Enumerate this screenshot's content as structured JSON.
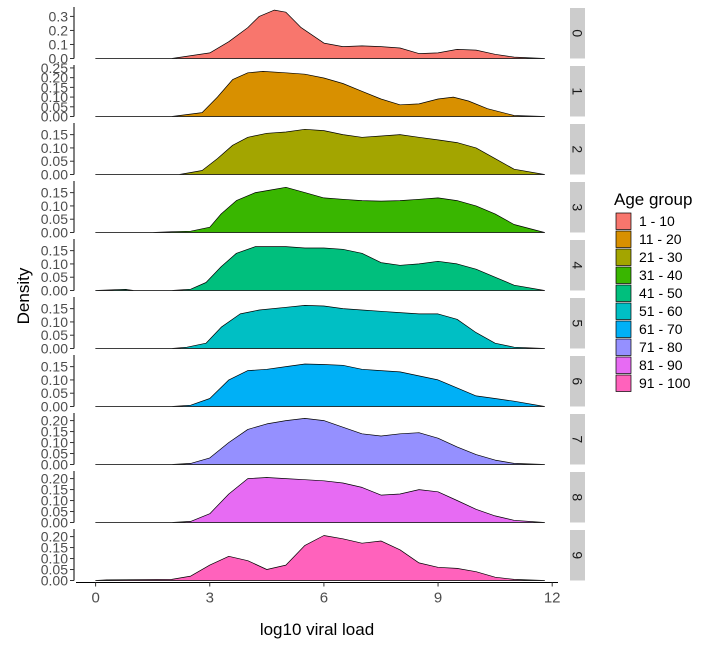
{
  "chart_data": {
    "type": "area",
    "subtype": "faceted density ridgeline",
    "xlabel": "log10 viral load",
    "ylabel": "Density",
    "xlim": [
      -0.2,
      12.1
    ],
    "x_ticks": [
      0,
      3,
      6,
      9,
      12
    ],
    "legend": {
      "title": "Age group",
      "placement": "right",
      "entries": [
        {
          "label": "1 - 10",
          "color": "#F8766D"
        },
        {
          "label": "11 - 20",
          "color": "#D89000"
        },
        {
          "label": "21 - 30",
          "color": "#A3A500"
        },
        {
          "label": "31 - 40",
          "color": "#39B600"
        },
        {
          "label": "41 - 50",
          "color": "#00BF7D"
        },
        {
          "label": "51 - 60",
          "color": "#00BFC4"
        },
        {
          "label": "61 - 70",
          "color": "#00B0F6"
        },
        {
          "label": "71 - 80",
          "color": "#9590FF"
        },
        {
          "label": "81 - 90",
          "color": "#E76BF3"
        },
        {
          "label": "91 - 100",
          "color": "#FF62BC"
        }
      ]
    },
    "panels": [
      {
        "strip": "0",
        "ymax": 0.36,
        "y_ticks": [
          "0.0",
          "0.1",
          "0.2",
          "0.3"
        ],
        "y_tick_values": [
          0,
          0.1,
          0.2,
          0.3
        ],
        "x": [
          0.0,
          2.0,
          3.0,
          3.5,
          4.0,
          4.3,
          4.7,
          5.0,
          5.4,
          6.0,
          6.5,
          7.0,
          7.5,
          8.0,
          8.5,
          9.0,
          9.5,
          10.0,
          10.5,
          11.0,
          11.8
        ],
        "y": [
          0.0,
          0.0,
          0.04,
          0.12,
          0.22,
          0.3,
          0.345,
          0.33,
          0.22,
          0.11,
          0.085,
          0.09,
          0.085,
          0.075,
          0.035,
          0.04,
          0.065,
          0.06,
          0.03,
          0.01,
          0.0
        ]
      },
      {
        "strip": "1",
        "ymax": 0.26,
        "y_ticks": [
          "0.00",
          "0.05",
          "0.10",
          "0.15",
          "0.20",
          "0.25"
        ],
        "y_tick_values": [
          0,
          0.05,
          0.1,
          0.15,
          0.2,
          0.25
        ],
        "x": [
          0.0,
          2.0,
          2.8,
          3.2,
          3.6,
          4.0,
          4.4,
          5.0,
          5.5,
          6.0,
          6.5,
          7.0,
          7.5,
          8.0,
          8.5,
          9.0,
          9.4,
          9.8,
          10.3,
          11.0,
          11.8
        ],
        "y": [
          0.0,
          0.0,
          0.02,
          0.1,
          0.19,
          0.225,
          0.232,
          0.225,
          0.218,
          0.198,
          0.17,
          0.13,
          0.09,
          0.06,
          0.065,
          0.09,
          0.1,
          0.08,
          0.04,
          0.005,
          0.0
        ]
      },
      {
        "strip": "2",
        "ymax": 0.19,
        "y_ticks": [
          "0.00",
          "0.05",
          "0.10",
          "0.15"
        ],
        "y_tick_values": [
          0,
          0.05,
          0.1,
          0.15
        ],
        "x": [
          0.0,
          2.2,
          2.8,
          3.2,
          3.6,
          4.0,
          4.5,
          5.0,
          5.5,
          6.0,
          6.5,
          7.0,
          7.5,
          8.0,
          8.5,
          9.0,
          9.5,
          10.0,
          10.5,
          11.0,
          11.8
        ],
        "y": [
          0.0,
          0.0,
          0.015,
          0.06,
          0.11,
          0.14,
          0.155,
          0.16,
          0.17,
          0.165,
          0.15,
          0.14,
          0.145,
          0.15,
          0.14,
          0.13,
          0.12,
          0.1,
          0.06,
          0.02,
          0.0
        ]
      },
      {
        "strip": "3",
        "ymax": 0.19,
        "y_ticks": [
          "0.00",
          "0.05",
          "0.10",
          "0.15"
        ],
        "y_tick_values": [
          0,
          0.05,
          0.1,
          0.15
        ],
        "x": [
          0.0,
          1.5,
          2.0,
          2.5,
          3.0,
          3.3,
          3.7,
          4.2,
          4.6,
          5.0,
          5.5,
          6.0,
          6.5,
          7.0,
          7.5,
          8.0,
          8.5,
          9.0,
          9.5,
          10.0,
          10.5,
          11.0,
          11.8
        ],
        "y": [
          0.0,
          0.0,
          0.003,
          0.005,
          0.02,
          0.07,
          0.12,
          0.15,
          0.16,
          0.17,
          0.15,
          0.13,
          0.125,
          0.12,
          0.118,
          0.12,
          0.125,
          0.13,
          0.12,
          0.1,
          0.07,
          0.03,
          0.0
        ]
      },
      {
        "strip": "4",
        "ymax": 0.19,
        "y_ticks": [
          "0.00",
          "0.05",
          "0.10",
          "0.15"
        ],
        "y_tick_values": [
          0,
          0.05,
          0.1,
          0.15
        ],
        "x": [
          0.0,
          0.5,
          0.8,
          1.0,
          2.0,
          2.5,
          2.9,
          3.3,
          3.7,
          4.2,
          5.0,
          5.5,
          6.0,
          6.5,
          7.0,
          7.5,
          8.0,
          8.5,
          9.0,
          9.5,
          10.0,
          10.5,
          11.0,
          11.8
        ],
        "y": [
          0.0,
          0.003,
          0.004,
          0.0,
          0.0,
          0.005,
          0.03,
          0.09,
          0.14,
          0.165,
          0.165,
          0.16,
          0.16,
          0.155,
          0.14,
          0.105,
          0.095,
          0.1,
          0.11,
          0.1,
          0.08,
          0.05,
          0.02,
          0.0
        ]
      },
      {
        "strip": "5",
        "ymax": 0.19,
        "y_ticks": [
          "0.00",
          "0.05",
          "0.10",
          "0.15"
        ],
        "y_tick_values": [
          0,
          0.05,
          0.1,
          0.15
        ],
        "x": [
          0.0,
          2.0,
          2.4,
          2.9,
          3.3,
          3.8,
          4.3,
          5.0,
          5.5,
          6.0,
          6.5,
          7.0,
          7.5,
          8.0,
          8.5,
          9.0,
          9.5,
          10.0,
          10.5,
          11.0,
          11.8
        ],
        "y": [
          0.0,
          0.0,
          0.005,
          0.02,
          0.08,
          0.13,
          0.145,
          0.155,
          0.162,
          0.16,
          0.15,
          0.145,
          0.14,
          0.135,
          0.13,
          0.13,
          0.11,
          0.06,
          0.02,
          0.005,
          0.0
        ]
      },
      {
        "strip": "6",
        "ymax": 0.19,
        "y_ticks": [
          "0.00",
          "0.05",
          "0.10",
          "0.15"
        ],
        "y_tick_values": [
          0,
          0.05,
          0.1,
          0.15
        ],
        "x": [
          0.0,
          2.0,
          2.5,
          3.0,
          3.5,
          4.0,
          4.5,
          5.0,
          5.5,
          6.0,
          6.5,
          7.0,
          7.5,
          8.0,
          8.5,
          9.0,
          9.5,
          10.0,
          10.5,
          11.0,
          11.8
        ],
        "y": [
          0.0,
          0.0,
          0.005,
          0.03,
          0.1,
          0.135,
          0.14,
          0.15,
          0.16,
          0.158,
          0.155,
          0.14,
          0.135,
          0.13,
          0.115,
          0.1,
          0.07,
          0.04,
          0.03,
          0.02,
          0.0
        ]
      },
      {
        "strip": "7",
        "ymax": 0.23,
        "y_ticks": [
          "0.00",
          "0.05",
          "0.10",
          "0.15",
          "0.20"
        ],
        "y_tick_values": [
          0,
          0.05,
          0.1,
          0.15,
          0.2
        ],
        "x": [
          0.0,
          2.0,
          2.5,
          3.0,
          3.5,
          4.0,
          4.5,
          5.0,
          5.5,
          6.0,
          6.5,
          7.0,
          7.5,
          8.0,
          8.5,
          9.0,
          9.5,
          10.0,
          10.5,
          11.0,
          11.8
        ],
        "y": [
          0.0,
          0.0,
          0.005,
          0.03,
          0.1,
          0.16,
          0.185,
          0.2,
          0.21,
          0.2,
          0.17,
          0.14,
          0.13,
          0.14,
          0.145,
          0.12,
          0.08,
          0.045,
          0.02,
          0.005,
          0.0
        ]
      },
      {
        "strip": "8",
        "ymax": 0.23,
        "y_ticks": [
          "0.00",
          "0.05",
          "0.10",
          "0.15",
          "0.20"
        ],
        "y_tick_values": [
          0,
          0.05,
          0.1,
          0.15,
          0.2
        ],
        "x": [
          0.0,
          2.0,
          2.5,
          3.0,
          3.5,
          4.0,
          4.5,
          5.0,
          5.5,
          6.0,
          6.5,
          7.0,
          7.5,
          8.0,
          8.5,
          9.0,
          9.5,
          10.0,
          10.5,
          11.0,
          11.8
        ],
        "y": [
          0.0,
          0.0,
          0.005,
          0.04,
          0.13,
          0.2,
          0.205,
          0.2,
          0.195,
          0.19,
          0.18,
          0.16,
          0.125,
          0.13,
          0.15,
          0.14,
          0.1,
          0.06,
          0.03,
          0.01,
          0.0
        ]
      },
      {
        "strip": "9",
        "ymax": 0.23,
        "y_ticks": [
          "0.00",
          "0.05",
          "0.10",
          "0.15",
          "0.20"
        ],
        "y_tick_values": [
          0,
          0.05,
          0.1,
          0.15,
          0.2
        ],
        "x": [
          0.0,
          0.3,
          2.0,
          2.5,
          3.0,
          3.5,
          4.0,
          4.5,
          5.0,
          5.5,
          6.0,
          6.5,
          7.0,
          7.5,
          8.0,
          8.5,
          9.0,
          9.5,
          10.0,
          10.5,
          11.0,
          11.8
        ],
        "y": [
          0.0,
          0.003,
          0.005,
          0.02,
          0.07,
          0.11,
          0.09,
          0.05,
          0.07,
          0.16,
          0.205,
          0.19,
          0.17,
          0.18,
          0.14,
          0.08,
          0.06,
          0.055,
          0.04,
          0.015,
          0.005,
          0.0
        ]
      }
    ]
  }
}
